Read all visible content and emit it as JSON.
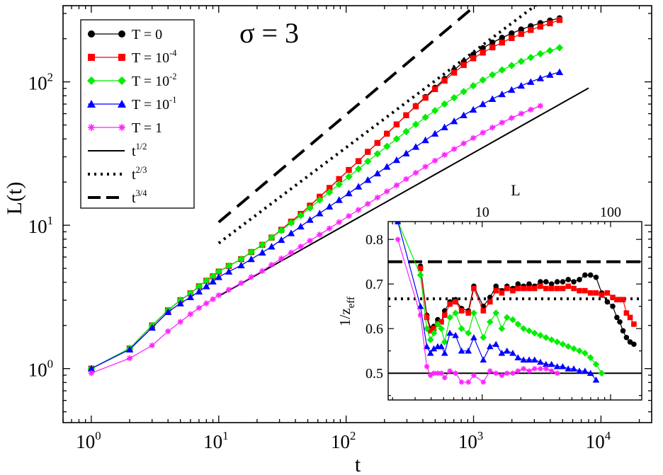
{
  "chart_data": [
    {
      "type": "line",
      "scale": "log-log",
      "annotation": "σ = 3",
      "xlabel": "t",
      "ylabel": "L(t)",
      "xlim": [
        0.6,
        25000
      ],
      "ylim": [
        0.42,
        340
      ],
      "x_ticks": [
        {
          "value": 1,
          "base": "10",
          "exp": "0"
        },
        {
          "value": 10,
          "base": "10",
          "exp": "1"
        },
        {
          "value": 100,
          "base": "10",
          "exp": "2"
        },
        {
          "value": 1000,
          "base": "10",
          "exp": "3"
        },
        {
          "value": 10000,
          "base": "10",
          "exp": "4"
        }
      ],
      "y_ticks": [
        {
          "value": 1,
          "base": "10",
          "exp": "0"
        },
        {
          "value": 10,
          "base": "10",
          "exp": "1"
        },
        {
          "value": 100,
          "base": "10",
          "exp": "2"
        }
      ],
      "series": [
        {
          "name": "T = 0",
          "label_base": "T = 0",
          "label_exp": "",
          "color": "#000000",
          "marker": "circle",
          "key": "T0",
          "x": [
            1,
            2,
            3,
            4,
            5,
            6,
            7,
            8,
            9,
            10,
            12,
            15,
            18,
            22,
            26,
            31,
            37,
            44,
            52,
            62,
            74,
            88,
            105,
            125,
            148,
            176,
            209,
            249,
            296,
            352,
            419,
            498,
            592,
            704,
            837,
            995,
            1183,
            1407,
            1673,
            1990,
            2366,
            2813,
            3345,
            3978,
            4730
          ],
          "y": [
            1.0,
            1.38,
            2.0,
            2.55,
            3.0,
            3.35,
            3.75,
            4.1,
            4.4,
            4.75,
            5.2,
            5.8,
            6.5,
            7.3,
            8.2,
            9.3,
            10.6,
            12.0,
            13.7,
            15.8,
            18.2,
            21.0,
            24.3,
            28.0,
            32.5,
            37.5,
            43.5,
            50.5,
            58.5,
            68.0,
            78.5,
            91.0,
            105.0,
            121.0,
            138.0,
            155.0,
            172.0,
            188.0,
            203.0,
            218.0,
            232.0,
            245.0,
            257.0,
            268.0,
            278.0
          ]
        },
        {
          "name": "T = 10^-4",
          "label_base": "T = 10",
          "label_exp": "-4",
          "color": "#ff0000",
          "marker": "square",
          "key": "T4",
          "x": [
            1,
            2,
            3,
            4,
            5,
            6,
            7,
            8,
            9,
            10,
            12,
            15,
            18,
            22,
            26,
            31,
            37,
            44,
            52,
            62,
            74,
            88,
            105,
            125,
            148,
            176,
            209,
            249,
            296,
            352,
            419,
            498,
            592,
            704,
            837,
            995,
            1183,
            1407,
            1673,
            1990,
            2366,
            2813,
            3345,
            3978,
            4730
          ],
          "y": [
            1.0,
            1.38,
            2.0,
            2.55,
            3.0,
            3.35,
            3.75,
            4.1,
            4.4,
            4.75,
            5.2,
            5.8,
            6.5,
            7.3,
            8.2,
            9.3,
            10.6,
            12.0,
            13.7,
            15.8,
            18.2,
            21.0,
            24.3,
            28.0,
            32.5,
            37.5,
            43.5,
            50.5,
            58.5,
            67.5,
            77.5,
            89.0,
            102.0,
            116.0,
            131.0,
            146.0,
            160.0,
            174.0,
            188.0,
            202.0,
            216.0,
            230.0,
            243.0,
            256.0,
            270.0
          ]
        },
        {
          "name": "T = 10^-2",
          "label_base": "T = 10",
          "label_exp": "-2",
          "color": "#00ee00",
          "marker": "diamond",
          "key": "T2",
          "x": [
            1,
            2,
            3,
            4,
            5,
            6,
            7,
            8,
            9,
            10,
            12,
            15,
            18,
            22,
            26,
            31,
            37,
            44,
            52,
            62,
            74,
            88,
            105,
            125,
            148,
            176,
            209,
            249,
            296,
            352,
            419,
            498,
            592,
            704,
            837,
            995,
            1183,
            1407,
            1673,
            1990,
            2366,
            2813,
            3345,
            3978,
            4730
          ],
          "y": [
            1.0,
            1.38,
            2.0,
            2.55,
            3.0,
            3.35,
            3.75,
            4.1,
            4.4,
            4.75,
            5.2,
            5.8,
            6.5,
            7.3,
            8.2,
            9.2,
            10.4,
            11.7,
            13.2,
            15.0,
            17.0,
            19.3,
            21.8,
            24.7,
            27.9,
            31.5,
            35.5,
            40.0,
            45.0,
            50.5,
            56.5,
            63.0,
            70.0,
            77.5,
            85.5,
            94.0,
            103.0,
            112.0,
            121.0,
            130.0,
            139.0,
            148.0,
            157.0,
            165.0,
            173.0
          ]
        },
        {
          "name": "T = 10^-1",
          "label_base": "T = 10",
          "label_exp": "-1",
          "color": "#0000ff",
          "marker": "triangle",
          "key": "T1",
          "x": [
            1,
            2,
            3,
            4,
            5,
            6,
            7,
            8,
            9,
            10,
            12,
            15,
            18,
            22,
            26,
            31,
            37,
            44,
            52,
            62,
            74,
            88,
            105,
            125,
            148,
            176,
            209,
            249,
            296,
            352,
            419,
            498,
            592,
            704,
            837,
            995,
            1183,
            1407,
            1673,
            1990,
            2366,
            2813,
            3345,
            3978,
            4730
          ],
          "y": [
            1.0,
            1.36,
            1.93,
            2.48,
            2.85,
            3.15,
            3.45,
            3.75,
            4.05,
            4.35,
            4.75,
            5.25,
            5.8,
            6.45,
            7.1,
            7.9,
            8.8,
            9.8,
            10.9,
            12.1,
            13.5,
            15.0,
            16.7,
            18.6,
            20.7,
            23.0,
            25.6,
            28.5,
            31.7,
            35.2,
            39.2,
            43.5,
            48.2,
            53.2,
            58.5,
            64.0,
            70.0,
            76.0,
            82.0,
            88.0,
            94.0,
            100.0,
            106.0,
            112.0,
            117.0
          ]
        },
        {
          "name": "T = 1",
          "label_base": "T = 1",
          "label_exp": "",
          "color": "#ff22ff",
          "marker": "star",
          "key": "T1b",
          "x": [
            1,
            2,
            3,
            4,
            5,
            6,
            7,
            8,
            9,
            10,
            12,
            15,
            18,
            22,
            26,
            31,
            37,
            44,
            52,
            62,
            74,
            88,
            105,
            125,
            148,
            176,
            209,
            249,
            296,
            352,
            419,
            498,
            592,
            704,
            837,
            995,
            1183,
            1407,
            1673,
            1990,
            2366,
            2813,
            3345
          ],
          "y": [
            0.93,
            1.18,
            1.45,
            1.82,
            2.12,
            2.4,
            2.65,
            2.85,
            3.05,
            3.25,
            3.55,
            3.95,
            4.35,
            4.8,
            5.3,
            5.85,
            6.45,
            7.1,
            7.8,
            8.6,
            9.5,
            10.5,
            11.6,
            12.8,
            14.1,
            15.6,
            17.2,
            19.0,
            21.0,
            23.2,
            25.6,
            28.2,
            31.0,
            34.0,
            37.2,
            40.6,
            44.2,
            48.0,
            52.0,
            56.0,
            60.0,
            64.0,
            68.0
          ]
        }
      ],
      "reference_lines": [
        {
          "name": "t^1/2",
          "label_base": "t",
          "label_exp": "1/2",
          "exponent": 0.5,
          "style": "solid",
          "x_range": [
            10,
            8000
          ],
          "y_at_start": 3.2
        },
        {
          "name": "t^2/3",
          "label_base": "t",
          "label_exp": "2/3",
          "exponent": 0.667,
          "style": "dotted",
          "x_range": [
            10,
            8000
          ],
          "y_at_start": 7.5
        },
        {
          "name": "t^3/4",
          "label_base": "t",
          "label_exp": "3/4",
          "exponent": 0.75,
          "style": "dashed",
          "x_range": [
            10,
            8000
          ],
          "y_at_start": 10.5
        }
      ],
      "legend_position": "top-left"
    },
    {
      "type": "line",
      "role": "inset",
      "scale": "log-x",
      "xlabel": "L",
      "ylabel_base": "1/z",
      "ylabel_sub": "eff",
      "xlim": [
        1.85,
        175
      ],
      "ylim": [
        0.44,
        0.84
      ],
      "x_ticks": [
        {
          "value": 10,
          "label": "10"
        },
        {
          "value": 100,
          "label": "100"
        }
      ],
      "y_ticks": [
        {
          "value": 0.5,
          "label": "0.5"
        },
        {
          "value": 0.6,
          "label": "0.6"
        },
        {
          "value": 0.7,
          "label": "0.7"
        },
        {
          "value": 0.8,
          "label": "0.8"
        }
      ],
      "reference_levels": [
        {
          "value": 0.5,
          "style": "solid"
        },
        {
          "value": 0.6667,
          "style": "dotted"
        },
        {
          "value": 0.75,
          "style": "dashed"
        }
      ],
      "series": [
        {
          "name": "T = 0",
          "key": "T0",
          "x": [
            3.3,
            3.7,
            3.95,
            4.2,
            4.5,
            4.8,
            5.1,
            5.6,
            6.2,
            6.9,
            7.8,
            8.6,
            10.2,
            11.5,
            12.8,
            14.2,
            15.6,
            17.3,
            19.0,
            21.0,
            23.2,
            25.6,
            28.4,
            31.4,
            34.7,
            38.4,
            42.4,
            46.8,
            51.7,
            57.2,
            63.2,
            69.8,
            77.1,
            85.3,
            94.3,
            104,
            112,
            118,
            125,
            133,
            142,
            152
          ],
          "y": [
            0.74,
            0.63,
            0.6,
            0.605,
            0.62,
            0.615,
            0.64,
            0.66,
            0.665,
            0.645,
            0.64,
            0.695,
            0.65,
            0.67,
            0.695,
            0.685,
            0.695,
            0.69,
            0.7,
            0.695,
            0.7,
            0.695,
            0.705,
            0.705,
            0.7,
            0.705,
            0.705,
            0.71,
            0.705,
            0.71,
            0.72,
            0.72,
            0.715,
            0.68,
            0.66,
            0.65,
            0.625,
            0.615,
            0.595,
            0.58,
            0.57,
            0.565
          ]
        },
        {
          "name": "T = 10^-4",
          "key": "T4",
          "x": [
            3.3,
            3.7,
            3.95,
            4.2,
            4.5,
            4.8,
            5.1,
            5.6,
            6.2,
            6.9,
            7.8,
            8.6,
            10.2,
            11.5,
            12.8,
            14.2,
            15.6,
            17.3,
            19.0,
            21.0,
            23.2,
            25.6,
            28.4,
            31.4,
            34.7,
            38.4,
            42.4,
            46.8,
            51.7,
            57.2,
            63.2,
            69.8,
            77.1,
            85.3,
            94.3,
            104,
            112,
            118,
            125,
            133,
            142,
            152
          ],
          "y": [
            0.735,
            0.625,
            0.595,
            0.6,
            0.61,
            0.615,
            0.63,
            0.655,
            0.66,
            0.64,
            0.635,
            0.69,
            0.64,
            0.66,
            0.685,
            0.68,
            0.69,
            0.685,
            0.69,
            0.69,
            0.69,
            0.69,
            0.695,
            0.69,
            0.69,
            0.69,
            0.69,
            0.695,
            0.69,
            0.685,
            0.685,
            0.68,
            0.68,
            0.675,
            0.68,
            0.67,
            0.665,
            0.665,
            0.665,
            0.635,
            0.625,
            0.61
          ]
        },
        {
          "name": "T = 10^-2",
          "key": "T2",
          "x": [
            2.2,
            3.3,
            3.7,
            3.95,
            4.2,
            4.5,
            4.8,
            5.1,
            5.6,
            6.2,
            6.9,
            7.8,
            8.6,
            10.2,
            11.5,
            12.8,
            14.2,
            15.6,
            17.3,
            19.0,
            21.0,
            23.2,
            25.6,
            28.4,
            31.4,
            34.7,
            38.4,
            42.4,
            46.8,
            51.7,
            57.2,
            63.2,
            69.8,
            77.1,
            85.3
          ],
          "y": [
            0.84,
            0.72,
            0.6,
            0.575,
            0.59,
            0.61,
            0.6,
            0.57,
            0.625,
            0.635,
            0.6,
            0.59,
            0.635,
            0.58,
            0.615,
            0.635,
            0.6,
            0.625,
            0.62,
            0.61,
            0.6,
            0.595,
            0.59,
            0.585,
            0.58,
            0.575,
            0.57,
            0.565,
            0.56,
            0.555,
            0.55,
            0.545,
            0.535,
            0.52,
            0.5
          ]
        },
        {
          "name": "T = 10^-1",
          "key": "T1",
          "x": [
            2.2,
            3.3,
            3.7,
            3.95,
            4.2,
            4.5,
            4.8,
            5.1,
            5.6,
            6.2,
            6.9,
            7.8,
            8.6,
            10.2,
            11.5,
            12.8,
            14.2,
            15.6,
            17.3,
            19.0,
            21.0,
            23.2,
            25.6,
            28.4,
            31.4,
            34.7,
            38.4,
            42.4,
            46.8,
            51.7,
            57.2,
            63.2,
            69.8,
            77.1
          ],
          "y": [
            0.84,
            0.65,
            0.56,
            0.545,
            0.555,
            0.56,
            0.56,
            0.545,
            0.59,
            0.585,
            0.55,
            0.55,
            0.58,
            0.53,
            0.56,
            0.565,
            0.545,
            0.55,
            0.545,
            0.535,
            0.53,
            0.53,
            0.53,
            0.525,
            0.52,
            0.52,
            0.515,
            0.515,
            0.51,
            0.51,
            0.505,
            0.505,
            0.5,
            0.485
          ]
        },
        {
          "name": "T = 1",
          "key": "T1b",
          "x": [
            2.2,
            3.3,
            3.7,
            3.95,
            4.2,
            4.5,
            4.8,
            5.1,
            5.6,
            6.2,
            6.9,
            7.8,
            8.6,
            10.2,
            11.5,
            12.8,
            14.2,
            15.6,
            17.3,
            19.0,
            21.0,
            23.2,
            25.6,
            28.4,
            31.4,
            34.7,
            38.4
          ],
          "y": [
            0.8,
            0.63,
            0.515,
            0.495,
            0.5,
            0.5,
            0.5,
            0.49,
            0.505,
            0.5,
            0.48,
            0.48,
            0.495,
            0.48,
            0.505,
            0.5,
            0.495,
            0.5,
            0.5,
            0.505,
            0.51,
            0.505,
            0.51,
            0.51,
            0.51,
            0.505,
            0.5
          ]
        }
      ]
    }
  ]
}
